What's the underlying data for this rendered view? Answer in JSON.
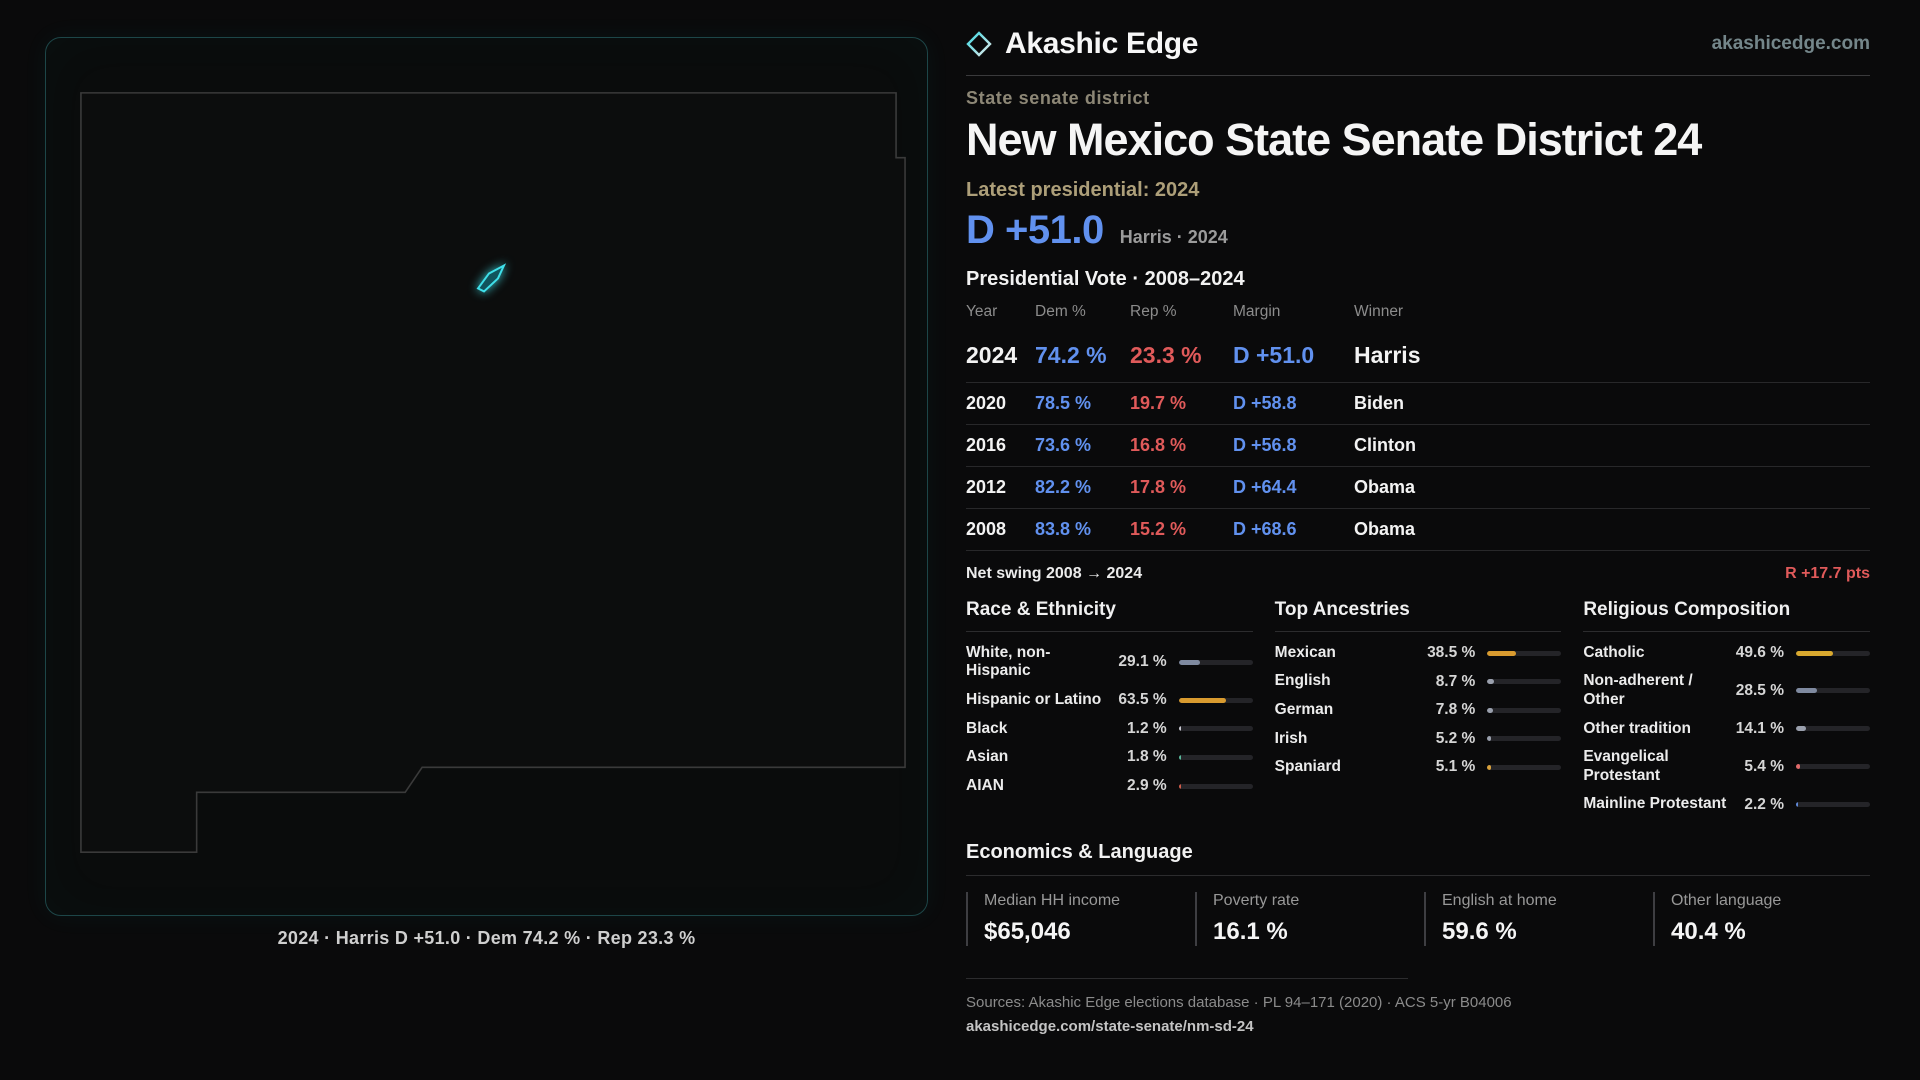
{
  "colors": {
    "dem_blue": "#6191ef",
    "rep_red": "#e05a5a",
    "accent_cyan": "#3fe0ea",
    "amber": "#d99b2f"
  },
  "brand": {
    "name": "Akashic Edge",
    "site": "akashicedge.com"
  },
  "map": {
    "caption": "2024 · Harris D +51.0 · Dem 74.2 % · Rep 23.3 %"
  },
  "header": {
    "kicker": "State senate district",
    "title": "New Mexico State Senate District 24",
    "latest_label": "Latest presidential: 2024",
    "margin_big": "D +51.0",
    "margin_note": "Harris · 2024"
  },
  "vote_table": {
    "title": "Presidential Vote · 2008–2024",
    "columns": [
      "Year",
      "Dem %",
      "Rep %",
      "Margin",
      "Winner"
    ],
    "rows": [
      {
        "year": "2024",
        "dem": "74.2 %",
        "rep": "23.3 %",
        "margin": "D +51.0",
        "winner": "Harris"
      },
      {
        "year": "2020",
        "dem": "78.5 %",
        "rep": "19.7 %",
        "margin": "D +58.8",
        "winner": "Biden"
      },
      {
        "year": "2016",
        "dem": "73.6 %",
        "rep": "16.8 %",
        "margin": "D +56.8",
        "winner": "Clinton"
      },
      {
        "year": "2012",
        "dem": "82.2 %",
        "rep": "17.8 %",
        "margin": "D +64.4",
        "winner": "Obama"
      },
      {
        "year": "2008",
        "dem": "83.8 %",
        "rep": "15.2 %",
        "margin": "D +68.6",
        "winner": "Obama"
      }
    ]
  },
  "net_swing": {
    "label": "Net swing 2008 → 2024",
    "value": "R +17.7 pts"
  },
  "demographics": {
    "sections": [
      {
        "title": "Race & Ethnicity",
        "rows": [
          {
            "label": "White, non-Hispanic",
            "value": "29.1 %",
            "pct": 29.1,
            "color": "#7f8aa0"
          },
          {
            "label": "Hispanic or Latino",
            "value": "63.5 %",
            "pct": 63.5,
            "color": "#d99b2f"
          },
          {
            "label": "Black",
            "value": "1.2 %",
            "pct": 1.2,
            "color": "#c9c9d2"
          },
          {
            "label": "Asian",
            "value": "1.8 %",
            "pct": 1.8,
            "color": "#58b89a"
          },
          {
            "label": "AIAN",
            "value": "2.9 %",
            "pct": 2.9,
            "color": "#d05c4a"
          }
        ]
      },
      {
        "title": "Top Ancestries",
        "rows": [
          {
            "label": "Mexican",
            "value": "38.5 %",
            "pct": 38.5,
            "color": "#d99b2f"
          },
          {
            "label": "English",
            "value": "8.7 %",
            "pct": 8.7,
            "color": "#9aa0ad"
          },
          {
            "label": "German",
            "value": "7.8 %",
            "pct": 7.8,
            "color": "#9aa0ad"
          },
          {
            "label": "Irish",
            "value": "5.2 %",
            "pct": 5.2,
            "color": "#9aa0ad"
          },
          {
            "label": "Spaniard",
            "value": "5.1 %",
            "pct": 5.1,
            "color": "#d9a13c"
          }
        ]
      },
      {
        "title": "Religious Composition",
        "rows": [
          {
            "label": "Catholic",
            "value": "49.6 %",
            "pct": 49.6,
            "color": "#d9a92f"
          },
          {
            "label": "Non-adherent / Other",
            "value": "28.5 %",
            "pct": 28.5,
            "color": "#7f8aa0"
          },
          {
            "label": "Other tradition",
            "value": "14.1 %",
            "pct": 14.1,
            "color": "#9aa0ad"
          },
          {
            "label": "Evangelical Protestant",
            "value": "5.4 %",
            "pct": 5.4,
            "color": "#e06a6a"
          },
          {
            "label": "Mainline Protestant",
            "value": "2.2 %",
            "pct": 2.2,
            "color": "#5f88d8"
          }
        ]
      }
    ]
  },
  "economics": {
    "title": "Economics & Language",
    "stats": [
      {
        "label": "Median HH income",
        "value": "$65,046"
      },
      {
        "label": "Poverty rate",
        "value": "16.1 %"
      },
      {
        "label": "English at home",
        "value": "59.6 %"
      },
      {
        "label": "Other language",
        "value": "40.4 %"
      }
    ]
  },
  "footer": {
    "sources": "Sources: Akashic Edge elections database · PL 94–171 (2020) · ACS 5-yr B04006",
    "url": "akashicedge.com/state-senate/nm-sd-24"
  },
  "chart_data": [
    {
      "type": "table",
      "title": "Presidential Vote · 2008–2024",
      "columns": [
        "Year",
        "Dem %",
        "Rep %",
        "Margin",
        "Winner"
      ],
      "rows": [
        [
          2024,
          74.2,
          23.3,
          "D +51.0",
          "Harris"
        ],
        [
          2020,
          78.5,
          19.7,
          "D +58.8",
          "Biden"
        ],
        [
          2016,
          73.6,
          16.8,
          "D +56.8",
          "Clinton"
        ],
        [
          2012,
          82.2,
          17.8,
          "D +64.4",
          "Obama"
        ],
        [
          2008,
          83.8,
          15.2,
          "D +68.6",
          "Obama"
        ]
      ],
      "annotations": [
        "Net swing 2008 → 2024: R +17.7 pts"
      ]
    },
    {
      "type": "bar",
      "title": "Race & Ethnicity",
      "categories": [
        "White, non-Hispanic",
        "Hispanic or Latino",
        "Black",
        "Asian",
        "AIAN"
      ],
      "values": [
        29.1,
        63.5,
        1.2,
        1.8,
        2.9
      ],
      "xlabel": "",
      "ylabel": "%",
      "ylim": [
        0,
        100
      ]
    },
    {
      "type": "bar",
      "title": "Top Ancestries",
      "categories": [
        "Mexican",
        "English",
        "German",
        "Irish",
        "Spaniard"
      ],
      "values": [
        38.5,
        8.7,
        7.8,
        5.2,
        5.1
      ],
      "xlabel": "",
      "ylabel": "%",
      "ylim": [
        0,
        100
      ]
    },
    {
      "type": "bar",
      "title": "Religious Composition",
      "categories": [
        "Catholic",
        "Non-adherent / Other",
        "Other tradition",
        "Evangelical Protestant",
        "Mainline Protestant"
      ],
      "values": [
        49.6,
        28.5,
        14.1,
        5.4,
        2.2
      ],
      "xlabel": "",
      "ylabel": "%",
      "ylim": [
        0,
        100
      ]
    },
    {
      "type": "table",
      "title": "Economics & Language",
      "columns": [
        "Median HH income",
        "Poverty rate",
        "English at home",
        "Other language"
      ],
      "rows": [
        [
          "$65,046",
          "16.1 %",
          "59.6 %",
          "40.4 %"
        ]
      ]
    }
  ]
}
